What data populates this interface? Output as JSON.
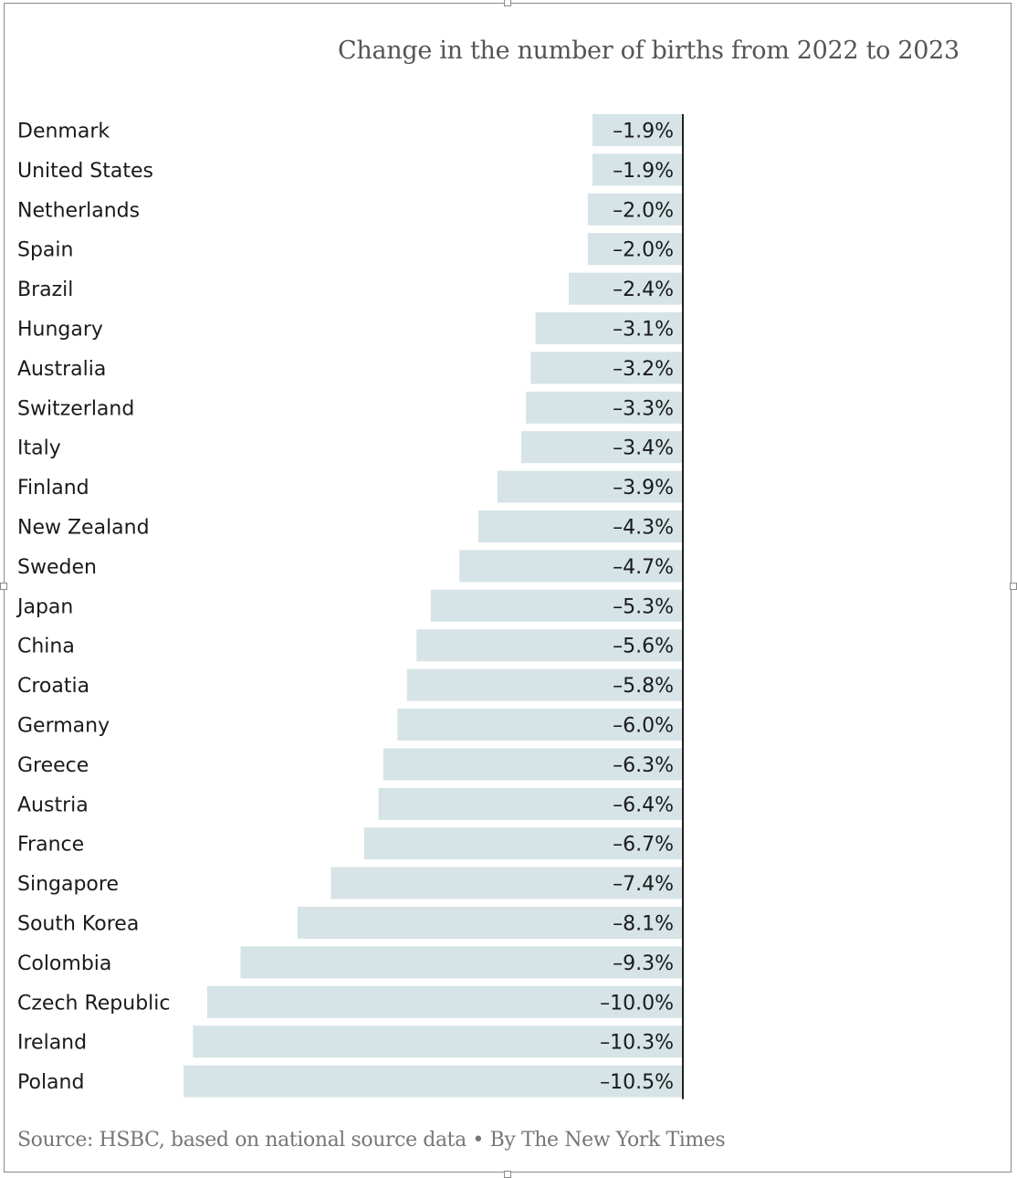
{
  "chart_data": {
    "type": "bar",
    "orientation": "horizontal",
    "title": "Change in the number of births from 2022 to 2023",
    "categories": [
      "Denmark",
      "United States",
      "Netherlands",
      "Spain",
      "Brazil",
      "Hungary",
      "Australia",
      "Switzerland",
      "Italy",
      "Finland",
      "New Zealand",
      "Sweden",
      "Japan",
      "China",
      "Croatia",
      "Germany",
      "Greece",
      "Austria",
      "France",
      "Singapore",
      "South Korea",
      "Colombia",
      "Czech Republic",
      "Ireland",
      "Poland"
    ],
    "values": [
      -1.9,
      -1.9,
      -2.0,
      -2.0,
      -2.4,
      -3.1,
      -3.2,
      -3.3,
      -3.4,
      -3.9,
      -4.3,
      -4.7,
      -5.3,
      -5.6,
      -5.8,
      -6.0,
      -6.3,
      -6.4,
      -6.7,
      -7.4,
      -8.1,
      -9.3,
      -10.0,
      -10.3,
      -10.5
    ],
    "value_labels": [
      "–1.9%",
      "–1.9%",
      "–2.0%",
      "–2.0%",
      "–2.4%",
      "–3.1%",
      "–3.2%",
      "–3.3%",
      "–3.4%",
      "–3.9%",
      "–4.3%",
      "–4.7%",
      "–5.3%",
      "–5.6%",
      "–5.8%",
      "–6.0%",
      "–6.3%",
      "–6.4%",
      "–6.7%",
      "–7.4%",
      "–8.1%",
      "–9.3%",
      "–10.0%",
      "–10.3%",
      "–10.5%"
    ],
    "xlabel": "",
    "ylabel": "",
    "xlim": [
      -10.5,
      0
    ],
    "grid": false,
    "legend": "none",
    "bar_color": "#d6e3e7",
    "baseline_color": "#222222"
  },
  "footer": {
    "source": "Source: HSBC, based on national source data • By The New York Times"
  }
}
